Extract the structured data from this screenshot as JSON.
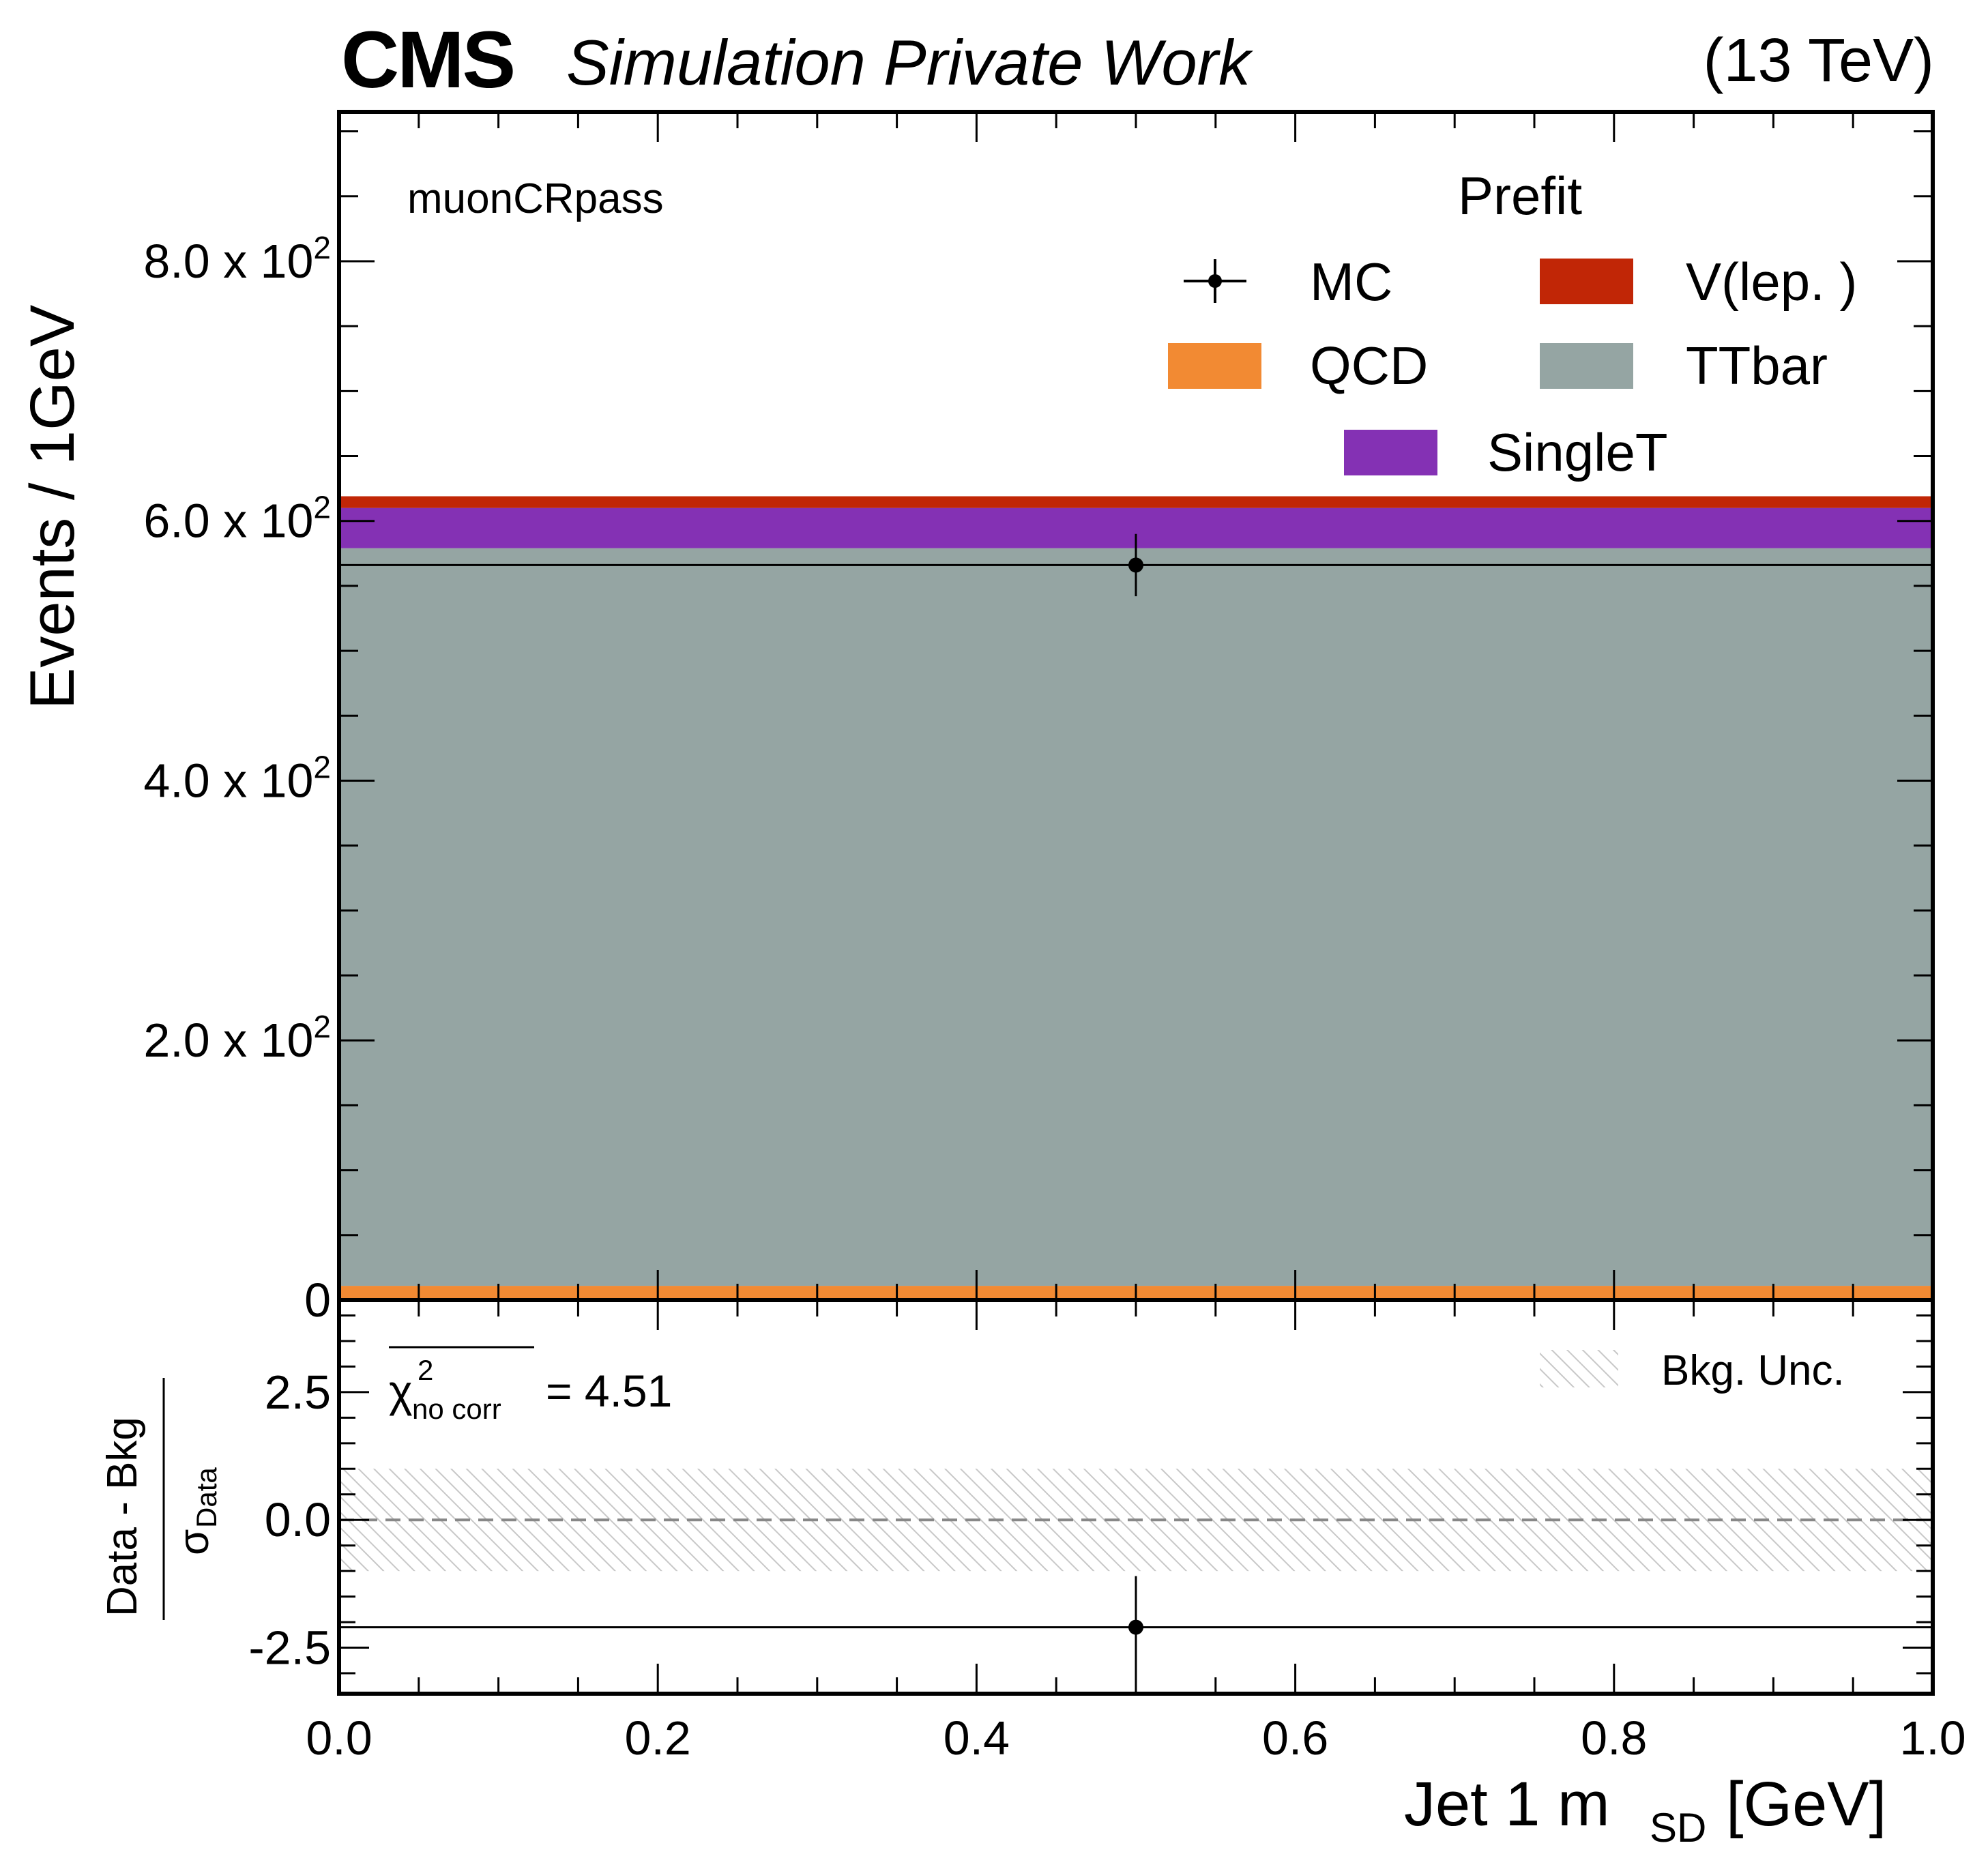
{
  "header": {
    "experiment": "CMS",
    "status": "Simulation Private Work",
    "energy": "(13 TeV)"
  },
  "region_label": "muonCRpass",
  "colors": {
    "qcd": "#f28a33",
    "ttbar": "#95a5a3",
    "singlet": "#8431b4",
    "vlep": "#c12606",
    "hatch": "#c8c8c8",
    "dashed_line": "#888888",
    "frame": "#000000"
  },
  "chart_data": [
    {
      "type": "bar",
      "panel": "main",
      "stacked": true,
      "bins": [
        [
          0.0,
          1.0
        ]
      ],
      "series": [
        {
          "name": "QCD",
          "values": [
            11
          ]
        },
        {
          "name": "TTbar",
          "values": [
            568
          ]
        },
        {
          "name": "SingleT",
          "values": [
            31
          ]
        },
        {
          "name": "V(lep.)",
          "values": [
            9
          ]
        }
      ],
      "points": [
        {
          "name": "MC",
          "x": 0.5,
          "xerr": 0.5,
          "y": 566,
          "yerr": 24
        }
      ],
      "ylabel": "Events / 1GeV",
      "ylim": [
        0,
        915
      ],
      "xlim": [
        0.0,
        1.0
      ],
      "yticks": [
        0,
        200,
        400,
        600,
        800
      ],
      "yticklabels": [
        "0",
        "2.0",
        "4.0",
        "6.0",
        "8.0"
      ],
      "sci_times": "x",
      "sci_base": "10",
      "sci_exp": "2",
      "legend": {
        "title": "Prefit",
        "placement": "top-right",
        "entries": [
          "MC",
          "V(lep. )",
          "QCD",
          "TTbar",
          "SingleT"
        ]
      }
    },
    {
      "type": "scatter",
      "panel": "pull",
      "x": [
        0.5
      ],
      "xerr": [
        0.5
      ],
      "y": [
        -2.1
      ],
      "yerr": [
        1.0
      ],
      "band": {
        "name": "Bkg. Unc.",
        "low": -1.0,
        "high": 1.0
      },
      "reference_line": 0.0,
      "ylabel_num": "Data - Bkg",
      "ylabel_den_sym": "σ",
      "ylabel_den_sub": "Data",
      "chi2": {
        "symbol": "χ",
        "sup": "2",
        "sub": "no corr",
        "text": "= 4.51"
      },
      "ylim": [
        -3.4,
        4.3
      ],
      "yticks": [
        -2.5,
        0.0,
        2.5
      ],
      "yticklabels": [
        "-2.5",
        "0.0",
        "2.5"
      ],
      "xlim": [
        0.0,
        1.0
      ],
      "xticks": [
        0.0,
        0.2,
        0.4,
        0.6,
        0.8,
        1.0
      ],
      "xticklabels": [
        "0.0",
        "0.2",
        "0.4",
        "0.6",
        "0.8",
        "1.0"
      ],
      "xlabel_main": "Jet 1 m",
      "xlabel_sub": "SD",
      "xlabel_unit": "[GeV]"
    }
  ]
}
